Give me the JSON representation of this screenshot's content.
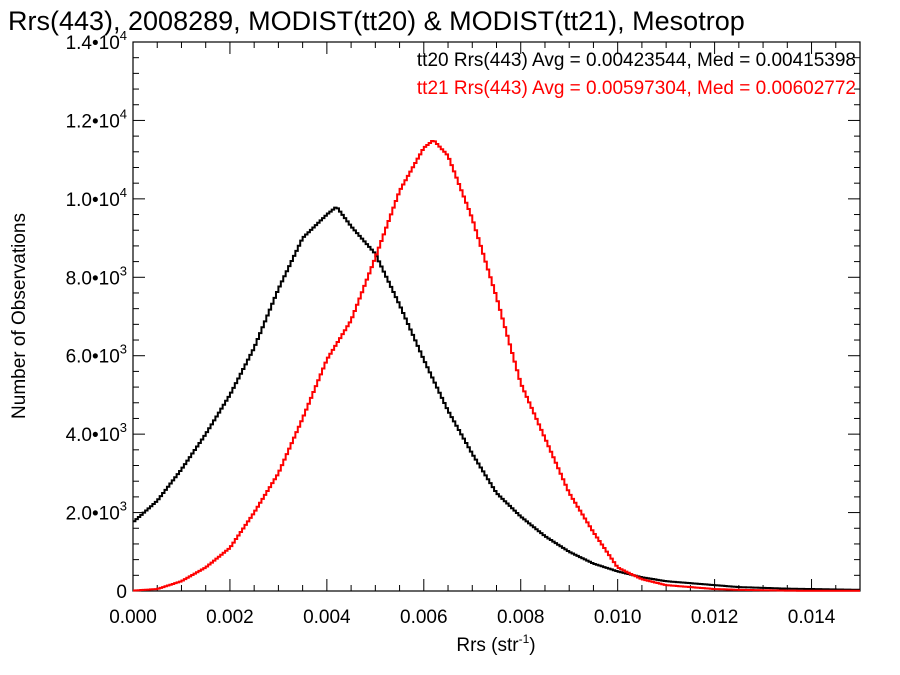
{
  "chart_data": {
    "type": "line",
    "title": "Rrs(443), 2008289, MODIST(tt20) & MODIST(tt21), Mesotrop",
    "xlabel": "Rrs (str",
    "xlabel_sup": "-1",
    "xlabel_close": ")",
    "ylabel": "Number of Observations",
    "xlim": [
      0.0,
      0.015
    ],
    "ylim": [
      0,
      14000
    ],
    "x_ticks": [
      {
        "value": 0.0,
        "label": "0.000"
      },
      {
        "value": 0.002,
        "label": "0.002"
      },
      {
        "value": 0.004,
        "label": "0.004"
      },
      {
        "value": 0.006,
        "label": "0.006"
      },
      {
        "value": 0.008,
        "label": "0.008"
      },
      {
        "value": 0.01,
        "label": "0.010"
      },
      {
        "value": 0.012,
        "label": "0.012"
      },
      {
        "value": 0.014,
        "label": "0.014"
      }
    ],
    "y_ticks": [
      {
        "value": 0,
        "label": "0",
        "sup": ""
      },
      {
        "value": 2000,
        "label": "2.0•10",
        "sup": "3"
      },
      {
        "value": 4000,
        "label": "4.0•10",
        "sup": "3"
      },
      {
        "value": 6000,
        "label": "6.0•10",
        "sup": "3"
      },
      {
        "value": 8000,
        "label": "8.0•10",
        "sup": "3"
      },
      {
        "value": 10000,
        "label": "1.0•10",
        "sup": "4"
      },
      {
        "value": 12000,
        "label": "1.2•10",
        "sup": "4"
      },
      {
        "value": 14000,
        "label": "1.4•10",
        "sup": "4"
      }
    ],
    "grid": false,
    "legend_position": "top-right",
    "series": [
      {
        "name": "tt20",
        "color": "#000000",
        "annotation": "tt20 Rrs(443) Avg = 0.00423544, Med = 0.00415398",
        "x": [
          0.0,
          0.0005,
          0.001,
          0.0015,
          0.002,
          0.0025,
          0.003,
          0.0035,
          0.004,
          0.0042,
          0.0045,
          0.005,
          0.0055,
          0.006,
          0.0065,
          0.007,
          0.0075,
          0.008,
          0.0085,
          0.009,
          0.0095,
          0.01,
          0.0105,
          0.011,
          0.0115,
          0.012,
          0.0125,
          0.013,
          0.0135,
          0.014,
          0.0145,
          0.015
        ],
        "y": [
          1750,
          2300,
          3100,
          4000,
          5000,
          6200,
          7700,
          9000,
          9600,
          9800,
          9300,
          8600,
          7300,
          5900,
          4600,
          3500,
          2500,
          1900,
          1400,
          1000,
          700,
          500,
          350,
          250,
          200,
          150,
          100,
          80,
          60,
          50,
          40,
          30
        ]
      },
      {
        "name": "tt21",
        "color": "#ff0000",
        "annotation": "tt21 Rrs(443) Avg = 0.00597304, Med = 0.00602772",
        "x": [
          0.0,
          0.0005,
          0.001,
          0.0015,
          0.002,
          0.0025,
          0.003,
          0.0035,
          0.004,
          0.0045,
          0.005,
          0.0055,
          0.006,
          0.0062,
          0.0065,
          0.007,
          0.0075,
          0.008,
          0.0085,
          0.009,
          0.0095,
          0.01,
          0.0105,
          0.011,
          0.0115,
          0.012,
          0.0125,
          0.013,
          0.0135,
          0.014,
          0.0145,
          0.015
        ],
        "y": [
          10,
          50,
          250,
          600,
          1100,
          2000,
          3000,
          4400,
          5900,
          6900,
          8500,
          10200,
          11300,
          11500,
          11100,
          9500,
          7500,
          5300,
          3900,
          2500,
          1500,
          600,
          300,
          150,
          100,
          50,
          30,
          20,
          10,
          5,
          5,
          5
        ]
      }
    ]
  }
}
